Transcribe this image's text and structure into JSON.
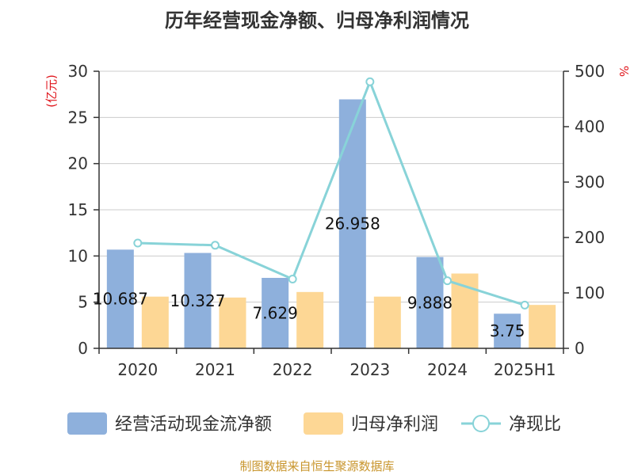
{
  "chart_data": {
    "type": "bar",
    "title": "历年经营现金净额、归母净利润情况",
    "categories": [
      "2020",
      "2021",
      "2022",
      "2023",
      "2024",
      "2025H1"
    ],
    "series": [
      {
        "name": "经营活动现金流净额",
        "type": "bar",
        "axis": "left",
        "color": "#8eb0dc",
        "values": [
          10.687,
          10.327,
          7.629,
          26.958,
          9.888,
          3.75
        ],
        "labels": [
          "10.687",
          "10.327",
          "7.629",
          "26.958",
          "9.888",
          "3.75"
        ]
      },
      {
        "name": "归母净利润",
        "type": "bar",
        "axis": "left",
        "color": "#fdd795",
        "values": [
          5.6,
          5.5,
          6.1,
          5.6,
          8.1,
          4.7
        ]
      },
      {
        "name": "净现比",
        "type": "line",
        "axis": "right",
        "color": "#88d3d8",
        "values": [
          190,
          186,
          125,
          481,
          122,
          78
        ]
      }
    ],
    "y_left": {
      "label": "(亿元)",
      "ylim": [
        0,
        30
      ],
      "ticks": [
        0,
        5,
        10,
        15,
        20,
        25,
        30
      ]
    },
    "y_right": {
      "label": "%",
      "ylim": [
        0,
        500
      ],
      "ticks": [
        0,
        100,
        200,
        300,
        400,
        500
      ]
    },
    "grid": true,
    "legend_position": "bottom"
  },
  "source_note": "制图数据来自恒生聚源数据库"
}
